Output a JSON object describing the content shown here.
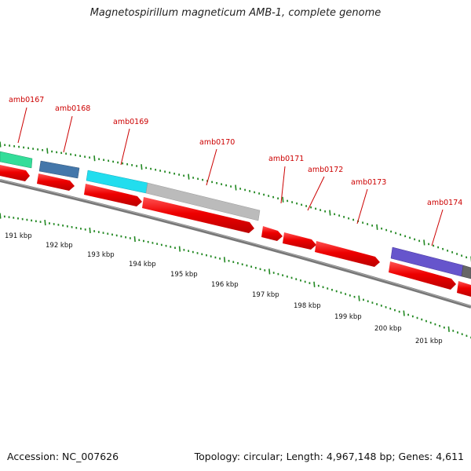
{
  "title": "Magnetospirillum magneticum AMB-1, complete genome",
  "footer": {
    "accession": "Accession: NC_007626",
    "topology": "Topology: circular; Length: 4,967,148 bp; Genes: 4,611"
  },
  "colors": {
    "gene_label": "#cc0000",
    "forward_arrow": "#ee0000",
    "tick": "#228822",
    "backbone": "#777777"
  },
  "scale_labels": [
    "191 kbp",
    "192 kbp",
    "193 kbp",
    "194 kbp",
    "195 kbp",
    "196 kbp",
    "197 kbp",
    "198 kbp",
    "199 kbp",
    "200 kbp",
    "201 kbp"
  ],
  "gene_labels": [
    "amb0167",
    "amb0168",
    "amb0169",
    "amb0170",
    "amb0171",
    "amb0172",
    "amb0173",
    "amb0174"
  ],
  "features": [
    {
      "name": "amb0167-feature",
      "color": "#33dd99"
    },
    {
      "name": "amb0168-feature",
      "color": "#4477aa"
    },
    {
      "name": "amb0169-feature",
      "color": "#22ddee"
    },
    {
      "name": "amb0170-feature",
      "color": "#bbbbbb"
    },
    {
      "name": "amb0174-feature",
      "color": "#6655cc"
    },
    {
      "name": "edge-feature",
      "color": "#666666"
    }
  ]
}
